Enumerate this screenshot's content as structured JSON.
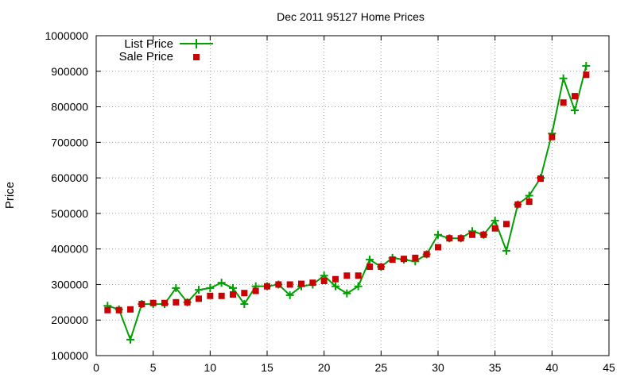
{
  "chart_data": {
    "type": "line",
    "title": "Dec 2011 95127 Home Prices",
    "xlabel": "",
    "ylabel": "Price",
    "xlim": [
      0,
      45
    ],
    "ylim": [
      100000,
      1000000
    ],
    "x_ticks": [
      0,
      5,
      10,
      15,
      20,
      25,
      30,
      35,
      40,
      45
    ],
    "y_ticks": [
      100000,
      200000,
      300000,
      400000,
      500000,
      600000,
      700000,
      800000,
      900000,
      1000000
    ],
    "grid": true,
    "legend_position": "top-left",
    "x": [
      1,
      2,
      3,
      4,
      5,
      6,
      7,
      8,
      9,
      10,
      11,
      12,
      13,
      14,
      15,
      16,
      17,
      18,
      19,
      20,
      21,
      22,
      23,
      24,
      25,
      26,
      27,
      28,
      29,
      30,
      31,
      32,
      33,
      34,
      35,
      36,
      37,
      38,
      39,
      40,
      41,
      42,
      43
    ],
    "series": [
      {
        "name": "List Price",
        "style": "line-cross",
        "color": "#00a000",
        "values": [
          240000,
          230000,
          145000,
          245000,
          245000,
          245000,
          290000,
          250000,
          285000,
          290000,
          305000,
          290000,
          245000,
          295000,
          295000,
          300000,
          270000,
          295000,
          300000,
          325000,
          295000,
          275000,
          295000,
          370000,
          350000,
          375000,
          370000,
          365000,
          385000,
          440000,
          430000,
          430000,
          450000,
          440000,
          480000,
          395000,
          525000,
          550000,
          600000,
          725000,
          880000,
          790000,
          915000
        ]
      },
      {
        "name": "Sale Price",
        "style": "square",
        "color": "#cc0000",
        "values": [
          228000,
          228000,
          230000,
          245000,
          248000,
          248000,
          250000,
          250000,
          260000,
          268000,
          268000,
          272000,
          276000,
          282000,
          295000,
          300000,
          300000,
          302000,
          305000,
          310000,
          315000,
          325000,
          325000,
          350000,
          350000,
          370000,
          372000,
          375000,
          385000,
          405000,
          430000,
          430000,
          440000,
          440000,
          458000,
          470000,
          525000,
          533000,
          598000,
          715000,
          812000,
          830000,
          890000
        ]
      }
    ]
  }
}
